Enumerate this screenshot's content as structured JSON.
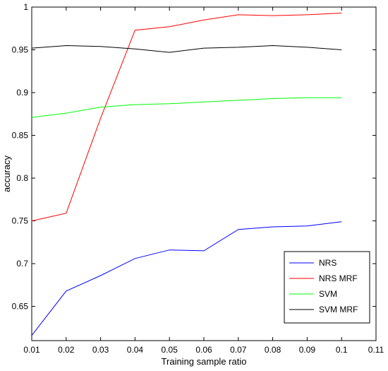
{
  "chart_data": {
    "type": "line",
    "title": "",
    "xlabel": "Training sample ratio",
    "ylabel": "accuracy",
    "xlim": [
      0.01,
      0.11
    ],
    "ylim": [
      0.61,
      1.0
    ],
    "xticks": [
      "0.01",
      "0.02",
      "0.03",
      "0.04",
      "0.05",
      "0.06",
      "0.07",
      "0.08",
      "0.09",
      "0.1",
      "0.11"
    ],
    "yticks": [
      "0.65",
      "0.7",
      "0.75",
      "0.8",
      "0.85",
      "0.9",
      "0.95",
      "1"
    ],
    "grid": false,
    "legend_position": "lower-right",
    "x": [
      0.01,
      0.02,
      0.03,
      0.04,
      0.05,
      0.06,
      0.07,
      0.08,
      0.09,
      0.1
    ],
    "series": [
      {
        "name": "NRS",
        "color": "#0000ff",
        "values": [
          0.616,
          0.668,
          0.686,
          0.706,
          0.716,
          0.715,
          0.74,
          0.743,
          0.744,
          0.749
        ]
      },
      {
        "name": "NRS  MRF",
        "color": "#ff0000",
        "values": [
          0.75,
          0.759,
          0.87,
          0.973,
          0.977,
          0.985,
          0.991,
          0.99,
          0.991,
          0.993
        ]
      },
      {
        "name": "SVM",
        "color": "#00ff00",
        "values": [
          0.871,
          0.876,
          0.883,
          0.886,
          0.887,
          0.889,
          0.891,
          0.893,
          0.894,
          0.894
        ]
      },
      {
        "name": "SVM  MRF",
        "color": "#000000",
        "values": [
          0.952,
          0.955,
          0.954,
          0.951,
          0.947,
          0.952,
          0.953,
          0.955,
          0.953,
          0.95
        ]
      }
    ]
  }
}
